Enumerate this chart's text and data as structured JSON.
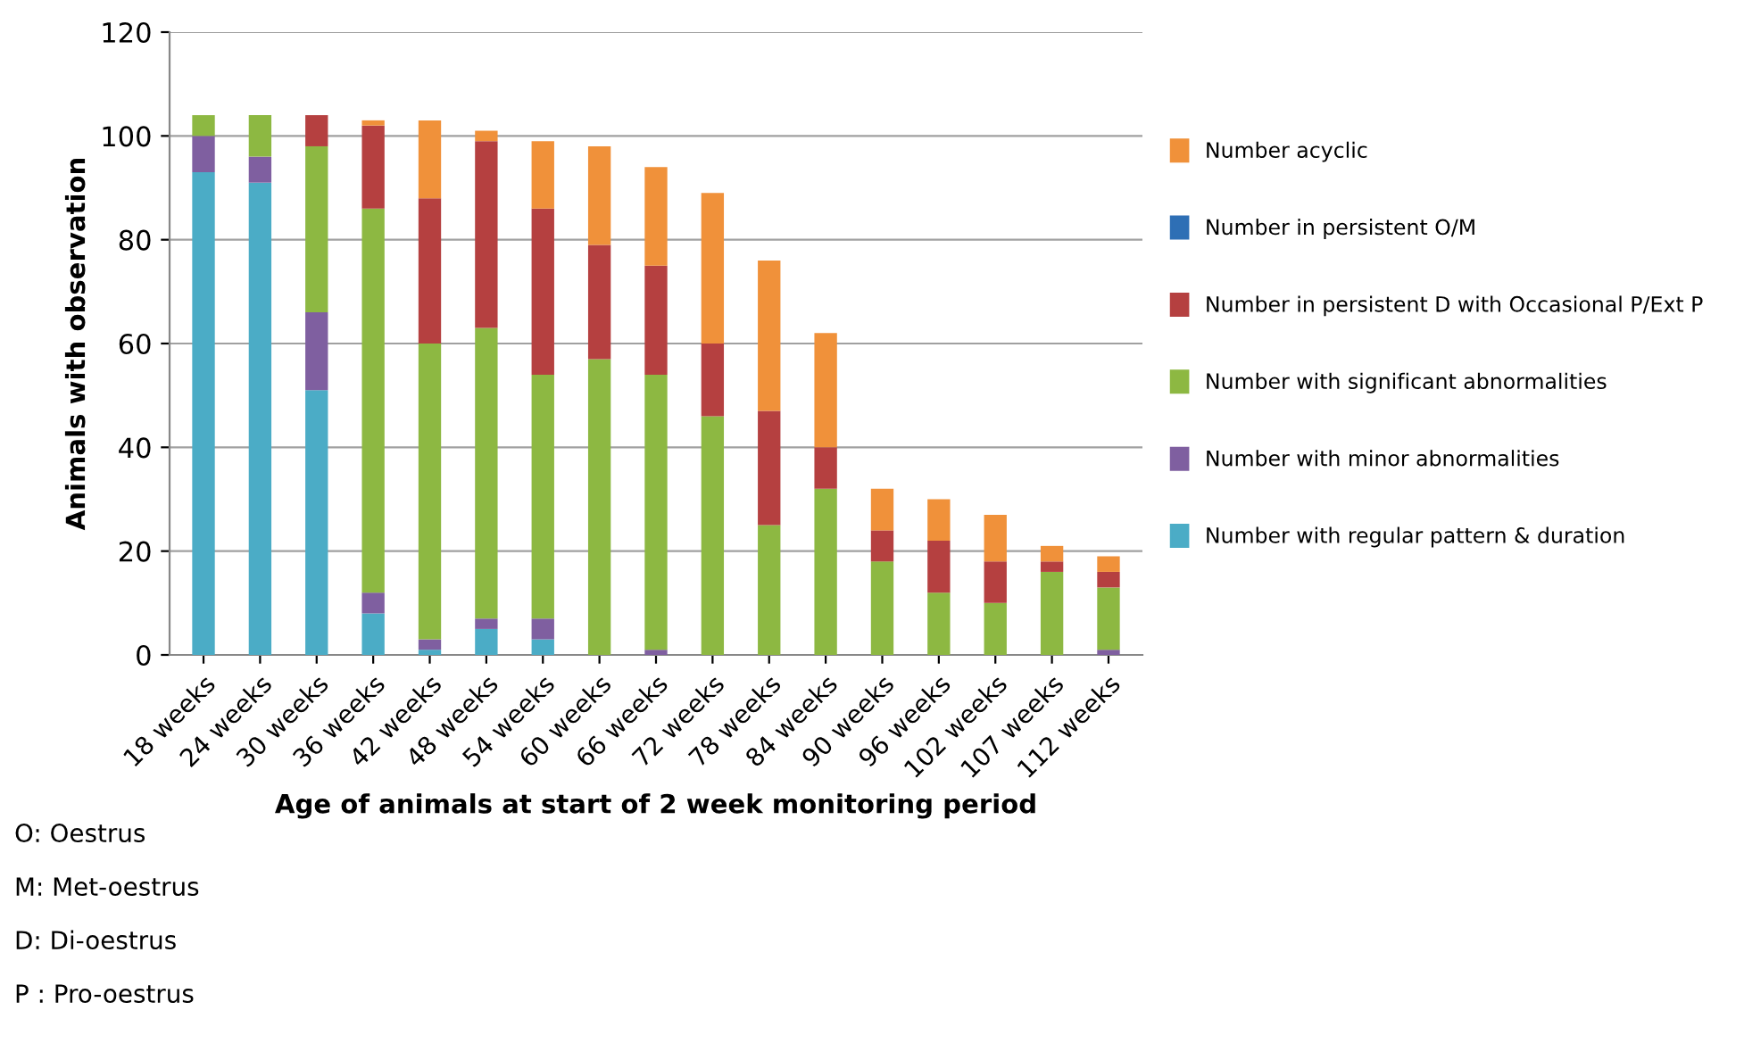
{
  "chart_data": {
    "type": "bar",
    "stacked": true,
    "xlabel": "Age of animals at start of 2 week monitoring period",
    "ylabel": "Animals with observation",
    "categories": [
      "18 weeks",
      "24 weeks",
      "30 weeks",
      "36 weeks",
      "42 weeks",
      "48 weeks",
      "54 weeks",
      "60 weeks",
      "66 weeks",
      "72 weeks",
      "78 weeks",
      "84 weeks",
      "90 weeks",
      "96 weeks",
      "102 weeks",
      "107 weeks",
      "112 weeks"
    ],
    "series": [
      {
        "name": "Number with regular pattern & duration",
        "color": "#4bacc6",
        "values": [
          93,
          91,
          51,
          8,
          1,
          5,
          3,
          0,
          0,
          0,
          0,
          0,
          0,
          0,
          0,
          0,
          0
        ]
      },
      {
        "name": "Number with minor abnormalities",
        "color": "#7f5fa0",
        "values": [
          7,
          5,
          15,
          4,
          2,
          2,
          4,
          0,
          1,
          0,
          0,
          0,
          0,
          0,
          0,
          0,
          1
        ]
      },
      {
        "name": "Number with significant abnormalities",
        "color": "#8db842",
        "values": [
          4,
          8,
          32,
          74,
          57,
          56,
          47,
          57,
          53,
          46,
          25,
          32,
          18,
          12,
          10,
          16,
          12
        ]
      },
      {
        "name": "Number in persistent D with Occasional P/Ext P",
        "color": "#b54040",
        "values": [
          0,
          0,
          6,
          16,
          28,
          36,
          32,
          22,
          21,
          14,
          22,
          8,
          6,
          10,
          8,
          2,
          3
        ]
      },
      {
        "name": "Number in persistent O/M",
        "color": "#2e6fb5",
        "values": [
          0,
          0,
          0,
          0,
          0,
          0,
          0,
          0,
          0,
          0,
          0,
          0,
          0,
          0,
          0,
          0,
          0
        ]
      },
      {
        "name": "Number acyclic",
        "color": "#f0913a",
        "values": [
          0,
          0,
          0,
          1,
          15,
          2,
          13,
          19,
          19,
          29,
          29,
          22,
          8,
          8,
          9,
          3,
          3
        ]
      }
    ],
    "ylim": [
      0,
      120
    ],
    "yticks": [
      0,
      20,
      40,
      60,
      80,
      100,
      120
    ],
    "grid": "y",
    "legend": "right",
    "annotations": [
      "O: Oestrus",
      "M: Met-oestrus",
      "D: Di-oestrus",
      "P : Pro-oestrus"
    ]
  }
}
